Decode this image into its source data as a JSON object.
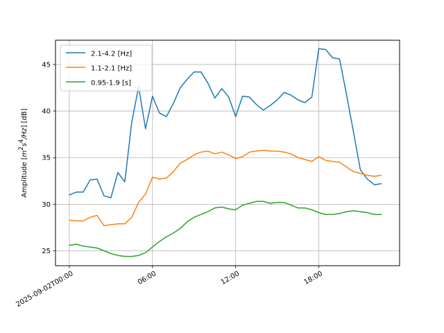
{
  "chart_data": {
    "type": "line",
    "title": "",
    "xlabel": "",
    "ylabel": "Amplitude [m²s⁴/Hz] [dB]",
    "ylabel_parts": [
      "Amplitude [",
      "m",
      "2",
      "s",
      "4",
      "/Hz",
      "] [dB]"
    ],
    "xlim": [
      "2025-09-01T23:00",
      "2025-09-02T23:50"
    ],
    "ylim": [
      23.4,
      47.6
    ],
    "grid": true,
    "legend_position": "top-left",
    "x_ticks": [
      {
        "value": "2025-09-02T00:00",
        "label": "2025-09-02T00:00"
      },
      {
        "value": "2025-09-02T06:00",
        "label": "06:00"
      },
      {
        "value": "2025-09-02T12:00",
        "label": "12:00"
      },
      {
        "value": "2025-09-02T18:00",
        "label": "18:00"
      }
    ],
    "y_ticks": [
      25,
      30,
      35,
      40,
      45
    ],
    "x": [
      "2025-09-02T00:00",
      "2025-09-02T00:30",
      "2025-09-02T01:00",
      "2025-09-02T01:30",
      "2025-09-02T02:00",
      "2025-09-02T02:30",
      "2025-09-02T03:00",
      "2025-09-02T03:30",
      "2025-09-02T04:00",
      "2025-09-02T04:30",
      "2025-09-02T05:00",
      "2025-09-02T05:30",
      "2025-09-02T06:00",
      "2025-09-02T06:30",
      "2025-09-02T07:00",
      "2025-09-02T07:30",
      "2025-09-02T08:00",
      "2025-09-02T08:30",
      "2025-09-02T09:00",
      "2025-09-02T09:30",
      "2025-09-02T10:00",
      "2025-09-02T10:30",
      "2025-09-02T11:00",
      "2025-09-02T11:30",
      "2025-09-02T12:00",
      "2025-09-02T12:30",
      "2025-09-02T13:00",
      "2025-09-02T13:30",
      "2025-09-02T14:00",
      "2025-09-02T14:30",
      "2025-09-02T15:00",
      "2025-09-02T15:30",
      "2025-09-02T16:00",
      "2025-09-02T16:30",
      "2025-09-02T17:00",
      "2025-09-02T17:30",
      "2025-09-02T18:00",
      "2025-09-02T18:30",
      "2025-09-02T19:00",
      "2025-09-02T19:30",
      "2025-09-02T20:00",
      "2025-09-02T20:30",
      "2025-09-02T21:00",
      "2025-09-02T21:30",
      "2025-09-02T22:00",
      "2025-09-02T22:30"
    ],
    "series": [
      {
        "name": "2.1-4.2 [Hz]",
        "color": "#1f77b4",
        "values": [
          31.0,
          31.3,
          31.3,
          32.6,
          32.7,
          30.9,
          30.7,
          33.4,
          32.4,
          38.8,
          42.6,
          38.1,
          41.6,
          39.8,
          39.4,
          40.8,
          42.5,
          43.4,
          44.2,
          44.2,
          43.0,
          41.4,
          42.4,
          41.5,
          39.4,
          41.6,
          41.5,
          40.7,
          40.1,
          40.6,
          41.2,
          42.0,
          41.7,
          41.2,
          40.9,
          41.5,
          46.7,
          46.6,
          45.7,
          45.6,
          41.8,
          37.8,
          33.7,
          32.7,
          32.1,
          32.2
        ]
      },
      {
        "name": "1.1-2.1 [Hz]",
        "color": "#ff7f0e",
        "values": [
          28.3,
          28.2,
          28.2,
          28.6,
          28.8,
          27.7,
          27.8,
          27.9,
          27.9,
          28.6,
          30.2,
          31.1,
          32.9,
          32.7,
          32.8,
          33.5,
          34.4,
          34.8,
          35.3,
          35.6,
          35.7,
          35.4,
          35.6,
          35.3,
          34.9,
          35.1,
          35.6,
          35.7,
          35.8,
          35.7,
          35.7,
          35.6,
          35.4,
          35.0,
          34.8,
          34.6,
          35.1,
          34.7,
          34.6,
          34.5,
          34.0,
          33.5,
          33.3,
          33.1,
          33.0,
          33.1
        ]
      },
      {
        "name": "0.95-1.9 [s]",
        "color": "#2ca02c",
        "values": [
          25.6,
          25.7,
          25.5,
          25.4,
          25.3,
          25.0,
          24.7,
          24.5,
          24.4,
          24.4,
          24.5,
          24.8,
          25.4,
          26.0,
          26.5,
          26.9,
          27.4,
          28.1,
          28.6,
          28.9,
          29.2,
          29.6,
          29.7,
          29.5,
          29.4,
          29.9,
          30.1,
          30.3,
          30.3,
          30.1,
          30.2,
          30.2,
          29.9,
          29.6,
          29.6,
          29.4,
          29.1,
          28.9,
          28.9,
          29.0,
          29.2,
          29.3,
          29.2,
          29.1,
          28.9,
          28.9
        ]
      }
    ]
  }
}
